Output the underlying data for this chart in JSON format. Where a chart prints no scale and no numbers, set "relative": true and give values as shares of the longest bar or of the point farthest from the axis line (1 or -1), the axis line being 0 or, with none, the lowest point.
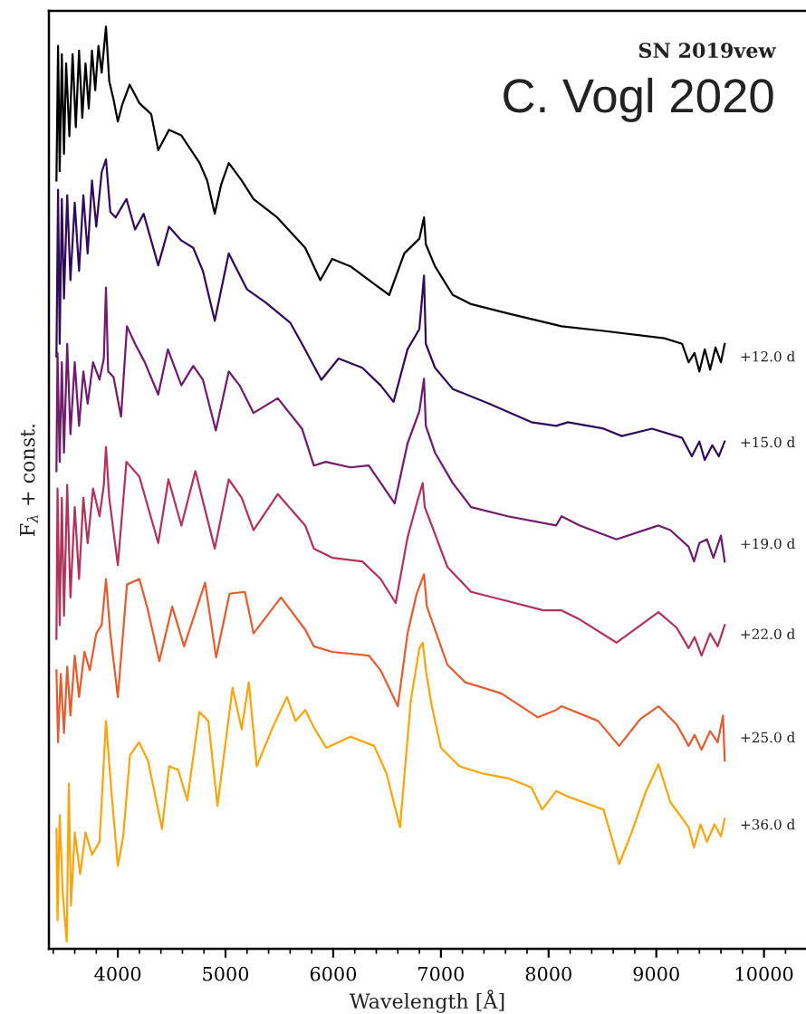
{
  "chart_data": {
    "type": "line",
    "title": "SN 2019vew",
    "subtitle": "C. Vogl 2020",
    "xlabel": "Wavelength [Å]",
    "ylabel": "F$_{λ}$ + const.",
    "relative": true,
    "xlim": [
      3360,
      10390
    ],
    "xticks": [
      4000,
      5000,
      6000,
      7000,
      8000,
      9000,
      10000
    ],
    "series": [
      {
        "name": "+12.0 d",
        "color": "#000000",
        "x": [
          3430,
          3445,
          3460,
          3480,
          3500,
          3520,
          3550,
          3580,
          3610,
          3640,
          3670,
          3700,
          3730,
          3760,
          3790,
          3820,
          3850,
          3890,
          3920,
          3960,
          4000,
          4040,
          4110,
          4200,
          4310,
          4375,
          4475,
          4590,
          4760,
          4830,
          4900,
          4960,
          5030,
          5150,
          5260,
          5480,
          5740,
          5880,
          5990,
          6160,
          6380,
          6520,
          6660,
          6800,
          6843,
          6860,
          6945,
          7110,
          7280,
          7620,
          8120,
          8510,
          9075,
          9240,
          9300,
          9355,
          9400,
          9450,
          9500,
          9550,
          9600,
          9635
        ],
        "values": [
          0.833,
          0.979,
          0.843,
          0.97,
          0.862,
          0.96,
          0.881,
          0.97,
          0.891,
          0.974,
          0.901,
          0.96,
          0.911,
          0.974,
          0.931,
          0.979,
          0.95,
          1.0,
          0.941,
          0.921,
          0.897,
          0.915,
          0.937,
          0.917,
          0.905,
          0.866,
          0.888,
          0.882,
          0.852,
          0.833,
          0.797,
          0.829,
          0.852,
          0.833,
          0.813,
          0.793,
          0.76,
          0.725,
          0.748,
          0.74,
          0.721,
          0.709,
          0.754,
          0.77,
          0.793,
          0.764,
          0.74,
          0.709,
          0.699,
          0.689,
          0.675,
          0.67,
          0.662,
          0.656,
          0.636,
          0.646,
          0.626,
          0.65,
          0.628,
          0.652,
          0.636,
          0.656
        ]
      },
      {
        "name": "+15.0 d",
        "color": "#300a5b",
        "x": [
          3430,
          3445,
          3460,
          3480,
          3500,
          3530,
          3560,
          3600,
          3640,
          3680,
          3720,
          3760,
          3800,
          3850,
          3890,
          3930,
          3980,
          4080,
          4160,
          4240,
          4375,
          4475,
          4590,
          4700,
          4790,
          4900,
          5030,
          5200,
          5370,
          5600,
          5710,
          5890,
          6050,
          6270,
          6440,
          6560,
          6690,
          6800,
          6843,
          6860,
          6945,
          7110,
          7450,
          7840,
          8070,
          8180,
          8510,
          8680,
          8960,
          9240,
          9330,
          9400,
          9450,
          9520,
          9580,
          9635
        ],
        "values": [
          0.642,
          0.823,
          0.656,
          0.813,
          0.705,
          0.817,
          0.725,
          0.809,
          0.735,
          0.817,
          0.754,
          0.833,
          0.783,
          0.842,
          0.856,
          0.799,
          0.793,
          0.813,
          0.78,
          0.797,
          0.741,
          0.783,
          0.768,
          0.76,
          0.735,
          0.681,
          0.754,
          0.715,
          0.701,
          0.679,
          0.656,
          0.617,
          0.64,
          0.63,
          0.611,
          0.593,
          0.65,
          0.672,
          0.73,
          0.656,
          0.63,
          0.607,
          0.591,
          0.571,
          0.567,
          0.571,
          0.564,
          0.556,
          0.564,
          0.554,
          0.534,
          0.55,
          0.53,
          0.546,
          0.534,
          0.55
        ]
      },
      {
        "name": "+19.0 d",
        "color": "#711a6e",
        "x": [
          3430,
          3440,
          3460,
          3480,
          3500,
          3530,
          3560,
          3600,
          3640,
          3680,
          3720,
          3770,
          3830,
          3870,
          3890,
          3910,
          3960,
          4030,
          4085,
          4160,
          4250,
          4375,
          4465,
          4590,
          4700,
          4790,
          4910,
          5030,
          5130,
          5260,
          5485,
          5710,
          5820,
          5930,
          6160,
          6330,
          6570,
          6690,
          6800,
          6843,
          6860,
          6945,
          7110,
          7280,
          7620,
          8070,
          8120,
          8290,
          8630,
          9020,
          9130,
          9300,
          9350,
          9400,
          9470,
          9530,
          9600,
          9635
        ],
        "values": [
          0.518,
          0.646,
          0.528,
          0.636,
          0.538,
          0.656,
          0.558,
          0.636,
          0.567,
          0.626,
          0.591,
          0.636,
          0.617,
          0.64,
          0.717,
          0.626,
          0.62,
          0.577,
          0.675,
          0.656,
          0.636,
          0.601,
          0.65,
          0.611,
          0.632,
          0.617,
          0.562,
          0.626,
          0.611,
          0.581,
          0.597,
          0.564,
          0.524,
          0.528,
          0.522,
          0.524,
          0.483,
          0.548,
          0.583,
          0.618,
          0.567,
          0.538,
          0.505,
          0.479,
          0.469,
          0.459,
          0.469,
          0.459,
          0.444,
          0.459,
          0.454,
          0.436,
          0.42,
          0.44,
          0.444,
          0.424,
          0.448,
          0.42
        ]
      },
      {
        "name": "+22.0 d",
        "color": "#b3325a",
        "x": [
          3430,
          3440,
          3460,
          3480,
          3500,
          3530,
          3560,
          3600,
          3640,
          3680,
          3720,
          3770,
          3830,
          3870,
          3890,
          3920,
          4000,
          4080,
          4200,
          4375,
          4470,
          4590,
          4720,
          4900,
          5030,
          5150,
          5260,
          5485,
          5740,
          5820,
          5990,
          6270,
          6440,
          6580,
          6690,
          6790,
          6831,
          6850,
          6915,
          7060,
          7280,
          7620,
          7950,
          8120,
          8290,
          8630,
          9020,
          9190,
          9300,
          9355,
          9420,
          9500,
          9570,
          9635
        ],
        "values": [
          0.336,
          0.499,
          0.351,
          0.489,
          0.361,
          0.503,
          0.381,
          0.479,
          0.401,
          0.489,
          0.44,
          0.499,
          0.469,
          0.503,
          0.544,
          0.489,
          0.416,
          0.528,
          0.512,
          0.44,
          0.509,
          0.459,
          0.518,
          0.434,
          0.509,
          0.489,
          0.454,
          0.493,
          0.459,
          0.434,
          0.424,
          0.42,
          0.401,
          0.375,
          0.446,
          0.489,
          0.505,
          0.479,
          0.459,
          0.414,
          0.387,
          0.377,
          0.367,
          0.367,
          0.357,
          0.332,
          0.365,
          0.348,
          0.326,
          0.338,
          0.318,
          0.342,
          0.328,
          0.351
        ]
      },
      {
        "name": "+25.0 d",
        "color": "#e55c30",
        "x": [
          3430,
          3445,
          3470,
          3500,
          3530,
          3560,
          3600,
          3640,
          3690,
          3740,
          3800,
          3850,
          3890,
          3930,
          4000,
          4085,
          4200,
          4280,
          4385,
          4505,
          4615,
          4810,
          4913,
          5037,
          5180,
          5260,
          5515,
          5740,
          5820,
          5990,
          6330,
          6440,
          6600,
          6690,
          6775,
          6843,
          6870,
          7060,
          7225,
          7560,
          7900,
          8070,
          8120,
          8460,
          8655,
          8850,
          9020,
          9190,
          9300,
          9355,
          9420,
          9500,
          9570,
          9620,
          9635
        ],
        "values": [
          0.302,
          0.224,
          0.298,
          0.234,
          0.306,
          0.253,
          0.318,
          0.273,
          0.322,
          0.302,
          0.342,
          0.351,
          0.401,
          0.342,
          0.273,
          0.395,
          0.401,
          0.367,
          0.312,
          0.371,
          0.328,
          0.397,
          0.316,
          0.385,
          0.387,
          0.342,
          0.381,
          0.346,
          0.328,
          0.322,
          0.318,
          0.302,
          0.263,
          0.342,
          0.385,
          0.406,
          0.371,
          0.308,
          0.289,
          0.277,
          0.251,
          0.259,
          0.263,
          0.247,
          0.22,
          0.249,
          0.263,
          0.243,
          0.22,
          0.232,
          0.216,
          0.236,
          0.224,
          0.253,
          0.204
        ]
      },
      {
        "name": "+36.0 d",
        "color": "#fca50a",
        "x": [
          3430,
          3440,
          3460,
          3490,
          3525,
          3545,
          3565,
          3600,
          3650,
          3700,
          3760,
          3830,
          3890,
          3940,
          4000,
          4050,
          4113,
          4196,
          4280,
          4410,
          4476,
          4560,
          4645,
          4757,
          4840,
          4925,
          5065,
          5150,
          5216,
          5290,
          5430,
          5570,
          5650,
          5740,
          5820,
          5935,
          6160,
          6380,
          6495,
          6620,
          6720,
          6800,
          6831,
          6860,
          6915,
          7000,
          7170,
          7390,
          7620,
          7840,
          7940,
          8070,
          8180,
          8510,
          8655,
          8770,
          8905,
          9020,
          9130,
          9300,
          9350,
          9410,
          9470,
          9540,
          9600,
          9635
        ],
        "values": [
          0.13,
          0.031,
          0.145,
          0.057,
          0.008,
          0.179,
          0.047,
          0.126,
          0.081,
          0.126,
          0.102,
          0.116,
          0.247,
          0.171,
          0.09,
          0.122,
          0.21,
          0.224,
          0.204,
          0.13,
          0.198,
          0.194,
          0.161,
          0.257,
          0.247,
          0.155,
          0.283,
          0.238,
          0.289,
          0.198,
          0.238,
          0.273,
          0.247,
          0.259,
          0.24,
          0.218,
          0.23,
          0.22,
          0.19,
          0.132,
          0.269,
          0.326,
          0.332,
          0.302,
          0.263,
          0.218,
          0.198,
          0.19,
          0.185,
          0.175,
          0.151,
          0.171,
          0.165,
          0.151,
          0.092,
          0.126,
          0.171,
          0.2,
          0.159,
          0.132,
          0.11,
          0.135,
          0.116,
          0.135,
          0.122,
          0.141
        ]
      }
    ]
  }
}
